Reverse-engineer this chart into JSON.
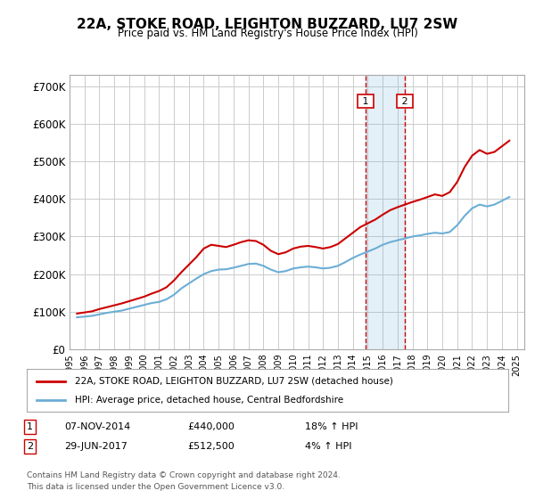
{
  "title": "22A, STOKE ROAD, LEIGHTON BUZZARD, LU7 2SW",
  "subtitle": "Price paid vs. HM Land Registry's House Price Index (HPI)",
  "ylabel_ticks": [
    "£0",
    "£100K",
    "£200K",
    "£300K",
    "£400K",
    "£500K",
    "£600K",
    "£700K"
  ],
  "ytick_values": [
    0,
    100000,
    200000,
    300000,
    400000,
    500000,
    600000,
    700000
  ],
  "ylim": [
    0,
    730000
  ],
  "xlim_start": 1995.0,
  "xlim_end": 2025.5,
  "legend_line1": "22A, STOKE ROAD, LEIGHTON BUZZARD, LU7 2SW (detached house)",
  "legend_line2": "HPI: Average price, detached house, Central Bedfordshire",
  "transaction1_label": "1",
  "transaction1_date": "07-NOV-2014",
  "transaction1_price": "£440,000",
  "transaction1_hpi": "18% ↑ HPI",
  "transaction2_label": "2",
  "transaction2_date": "29-JUN-2017",
  "transaction2_price": "£512,500",
  "transaction2_hpi": "4% ↑ HPI",
  "footnote1": "Contains HM Land Registry data © Crown copyright and database right 2024.",
  "footnote2": "This data is licensed under the Open Government Licence v3.0.",
  "hpi_color": "#6baed6",
  "price_color": "#cc0000",
  "marker1_x": 2014.85,
  "marker2_x": 2017.49,
  "shade_x1": 2014.85,
  "shade_x2": 2017.49,
  "hpi_data": {
    "years": [
      1995.5,
      1996.0,
      1996.5,
      1997.0,
      1997.5,
      1998.0,
      1998.5,
      1999.0,
      1999.5,
      2000.0,
      2000.5,
      2001.0,
      2001.5,
      2002.0,
      2002.5,
      2003.0,
      2003.5,
      2004.0,
      2004.5,
      2005.0,
      2005.5,
      2006.0,
      2006.5,
      2007.0,
      2007.5,
      2008.0,
      2008.5,
      2009.0,
      2009.5,
      2010.0,
      2010.5,
      2011.0,
      2011.5,
      2012.0,
      2012.5,
      2013.0,
      2013.5,
      2014.0,
      2014.5,
      2015.0,
      2015.5,
      2016.0,
      2016.5,
      2017.0,
      2017.5,
      2018.0,
      2018.5,
      2019.0,
      2019.5,
      2020.0,
      2020.5,
      2021.0,
      2021.5,
      2022.0,
      2022.5,
      2023.0,
      2023.5,
      2024.0,
      2024.5
    ],
    "values": [
      85000,
      87000,
      89000,
      93000,
      97000,
      100000,
      103000,
      108000,
      113000,
      118000,
      123000,
      126000,
      133000,
      145000,
      162000,
      175000,
      188000,
      200000,
      208000,
      212000,
      213000,
      217000,
      222000,
      227000,
      228000,
      222000,
      212000,
      205000,
      208000,
      215000,
      218000,
      220000,
      218000,
      215000,
      217000,
      222000,
      232000,
      243000,
      252000,
      260000,
      268000,
      278000,
      285000,
      290000,
      295000,
      300000,
      303000,
      307000,
      310000,
      308000,
      312000,
      330000,
      355000,
      375000,
      385000,
      380000,
      385000,
      395000,
      405000
    ]
  },
  "price_data": {
    "years": [
      1995.5,
      1996.0,
      1996.5,
      1997.0,
      1997.5,
      1998.0,
      1998.5,
      1999.0,
      1999.5,
      2000.0,
      2000.5,
      2001.0,
      2001.5,
      2002.0,
      2002.5,
      2003.0,
      2003.5,
      2004.0,
      2004.5,
      2005.0,
      2005.5,
      2006.0,
      2006.5,
      2007.0,
      2007.5,
      2008.0,
      2008.5,
      2009.0,
      2009.5,
      2010.0,
      2010.5,
      2011.0,
      2011.5,
      2012.0,
      2012.5,
      2013.0,
      2013.5,
      2014.0,
      2014.5,
      2015.0,
      2015.5,
      2016.0,
      2016.5,
      2017.0,
      2017.5,
      2018.0,
      2018.5,
      2019.0,
      2019.5,
      2020.0,
      2020.5,
      2021.0,
      2021.5,
      2022.0,
      2022.5,
      2023.0,
      2023.5,
      2024.0,
      2024.5
    ],
    "values": [
      95000,
      98000,
      101000,
      107000,
      112000,
      117000,
      122000,
      128000,
      134000,
      140000,
      148000,
      155000,
      165000,
      183000,
      205000,
      225000,
      245000,
      268000,
      278000,
      275000,
      272000,
      278000,
      285000,
      290000,
      288000,
      278000,
      262000,
      253000,
      258000,
      268000,
      273000,
      275000,
      272000,
      268000,
      272000,
      280000,
      295000,
      310000,
      325000,
      335000,
      345000,
      358000,
      370000,
      378000,
      385000,
      392000,
      398000,
      405000,
      412000,
      408000,
      418000,
      445000,
      485000,
      515000,
      530000,
      520000,
      525000,
      540000,
      555000
    ]
  }
}
